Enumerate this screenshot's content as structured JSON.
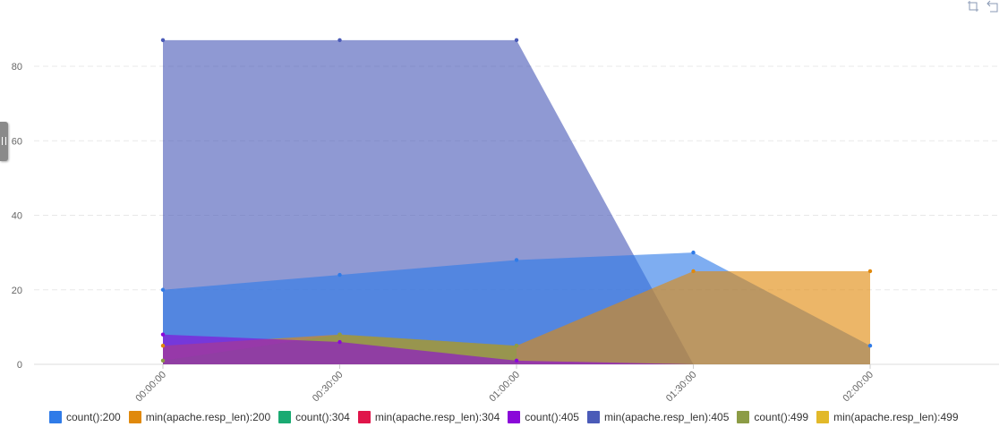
{
  "chart_data": {
    "type": "area",
    "categories": [
      "00:00:00",
      "00:30:00",
      "01:00:00",
      "01:30:00",
      "02:00:00"
    ],
    "ylim": [
      0,
      90
    ],
    "yticks": [
      0,
      20,
      40,
      60,
      80
    ],
    "grid": true,
    "legend_position": "bottom-left",
    "series": [
      {
        "name": "count():200",
        "color": "#2f7be8",
        "values": [
          20,
          24,
          28,
          30,
          5
        ]
      },
      {
        "name": "min(apache.resp_len):200",
        "color": "#e0890c",
        "values": [
          5,
          8,
          5,
          25,
          25
        ]
      },
      {
        "name": "count():304",
        "color": "#1aaa72",
        "values": [
          null,
          null,
          null,
          null,
          null
        ]
      },
      {
        "name": "min(apache.resp_len):304",
        "color": "#e0154a",
        "values": [
          null,
          null,
          null,
          null,
          null
        ]
      },
      {
        "name": "count():405",
        "color": "#8a08d9",
        "values": [
          8,
          6,
          1,
          0,
          null
        ]
      },
      {
        "name": "min(apache.resp_len):405",
        "color": "#4b5bb8",
        "values": [
          87,
          87,
          87,
          0,
          null
        ]
      },
      {
        "name": "count():499",
        "color": "#8c9c45",
        "values": [
          1,
          8,
          5,
          null,
          null
        ]
      },
      {
        "name": "min(apache.resp_len):499",
        "color": "#e2b92a",
        "values": [
          null,
          null,
          null,
          null,
          null
        ]
      }
    ]
  },
  "toolbar": {
    "icons": [
      "zoom-select-icon",
      "zoom-reset-icon"
    ]
  }
}
